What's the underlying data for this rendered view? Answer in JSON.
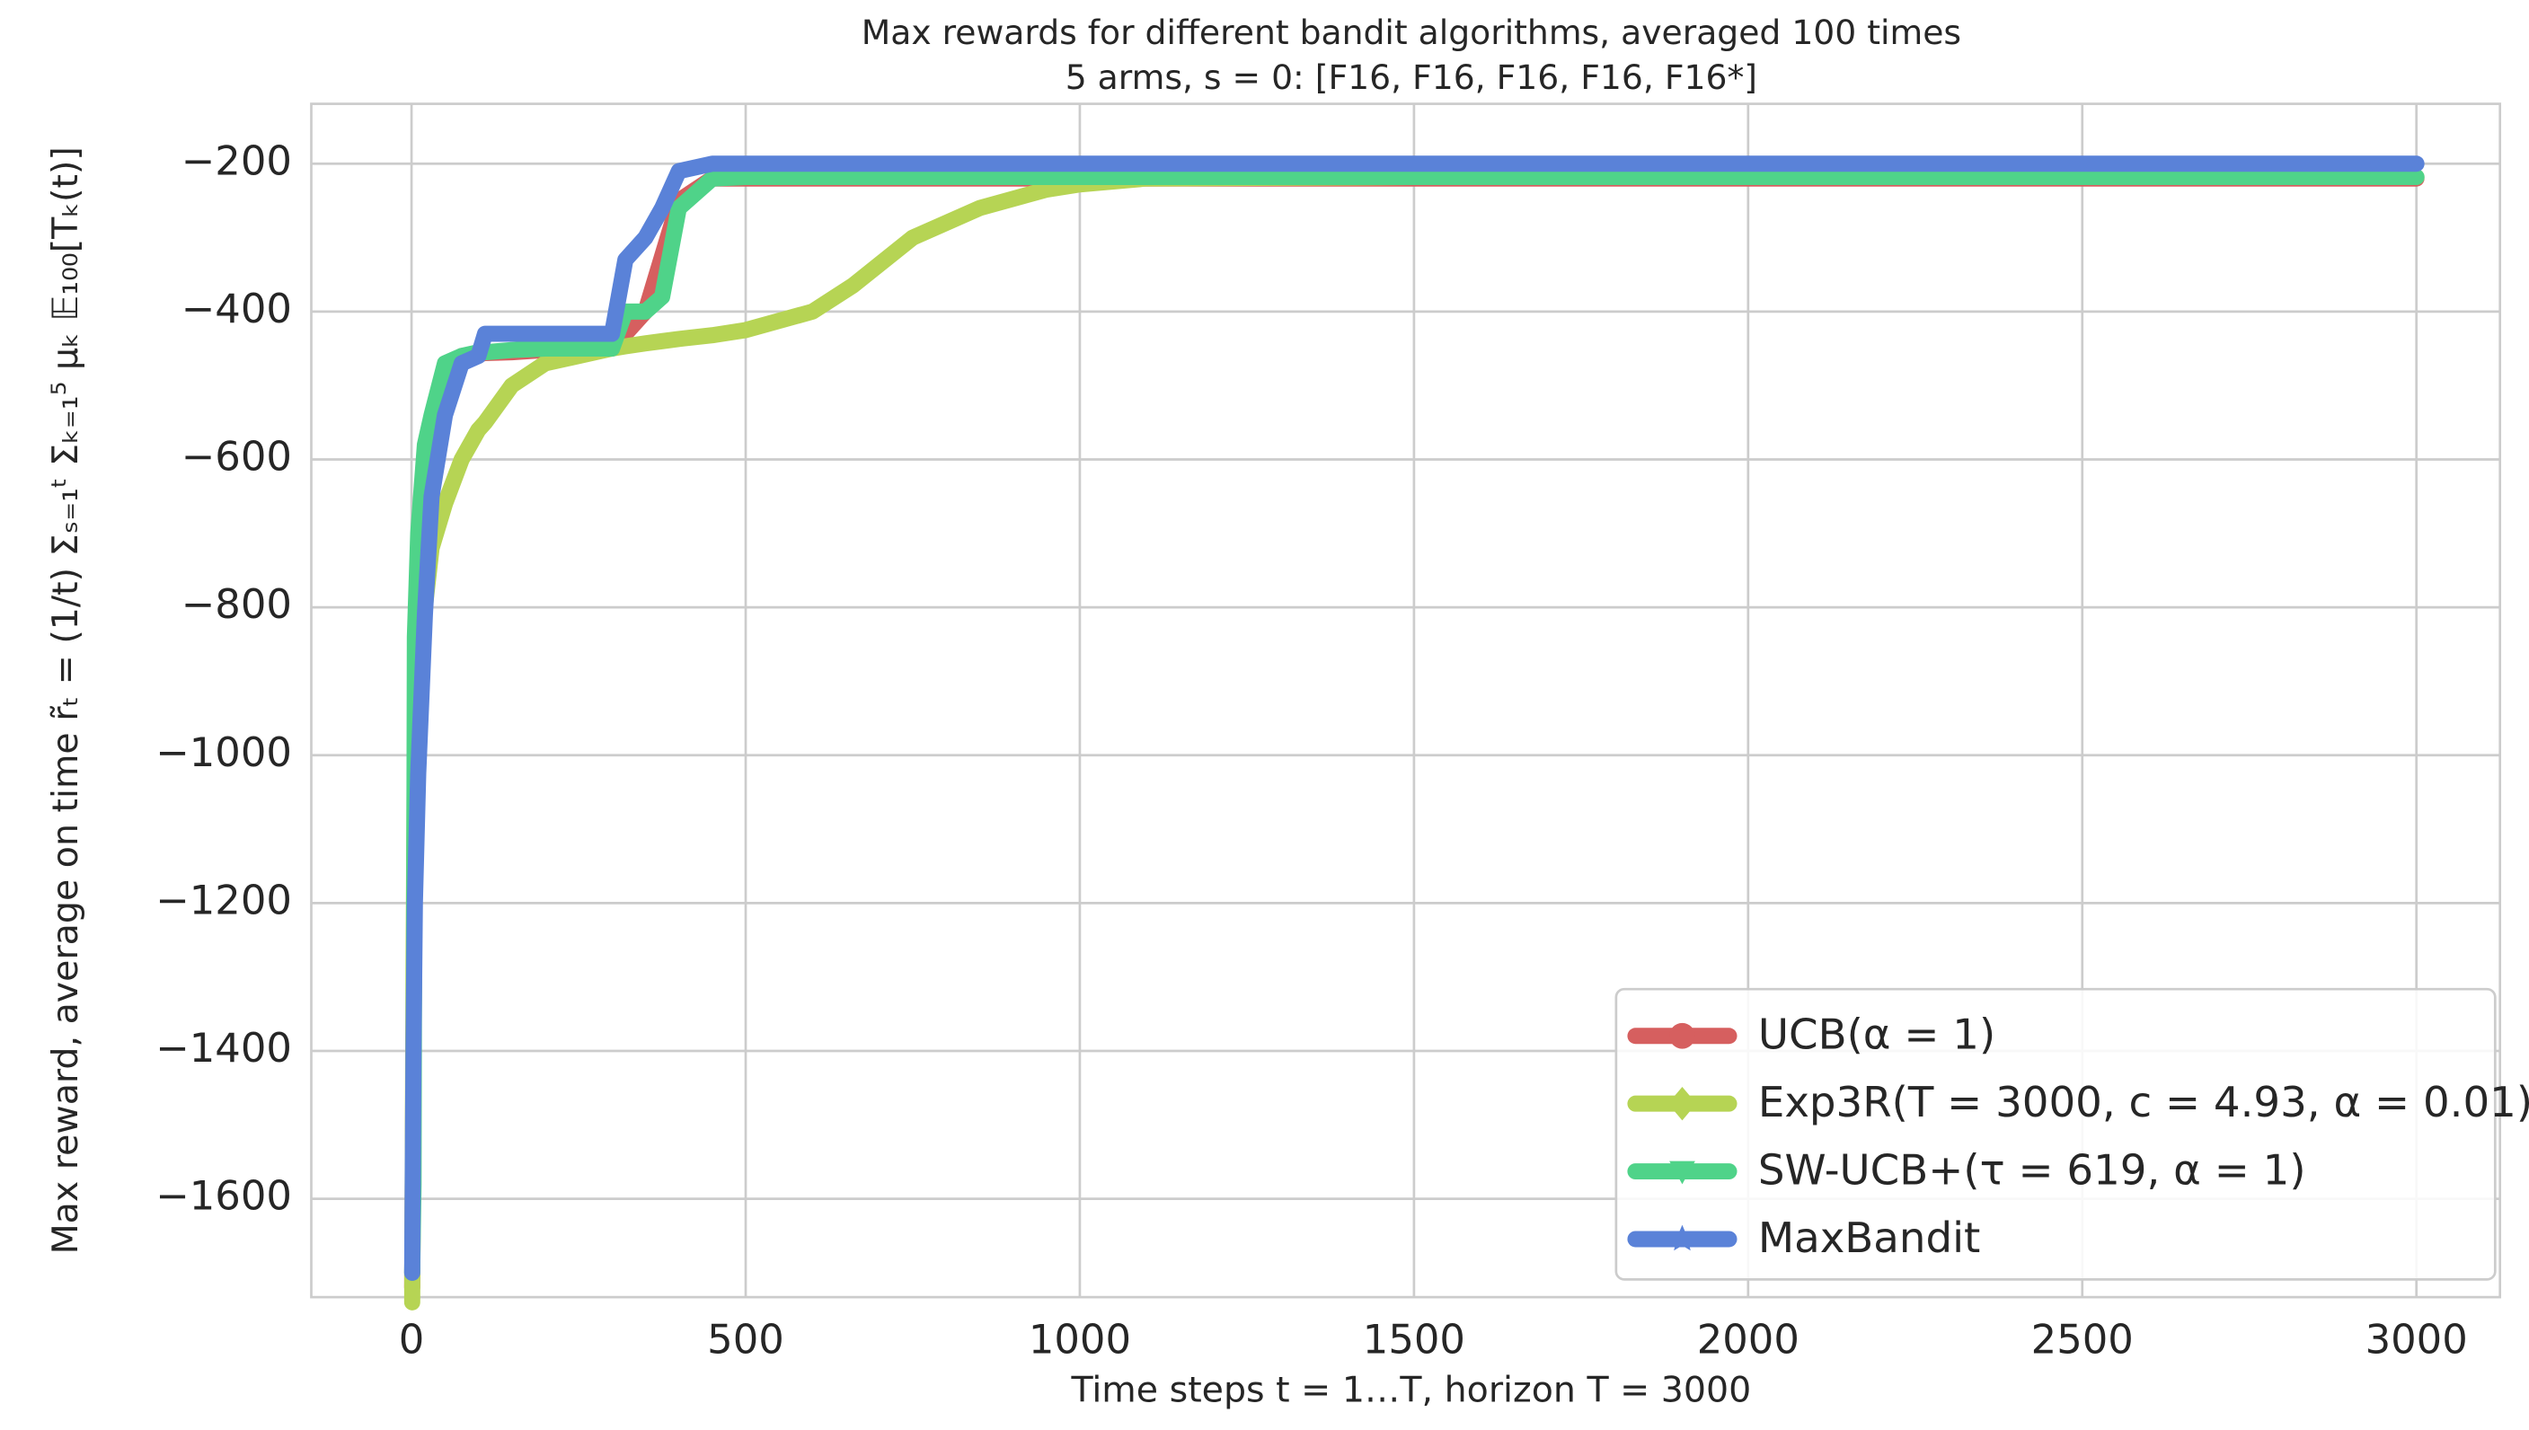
{
  "chart_data": {
    "type": "line",
    "title": "Max rewards for different bandit algorithms, averaged 100 times",
    "subtitle": "5 arms, s = 0: [F16, F16, F16, F16, F16*]",
    "x_label": "Time steps t = 1…T, horizon T = 3000",
    "y_label": "Max reward, average on time r̃ₜ = (1/t) Σₛ₌₁ᵗ Σₖ₌₁⁵ μₖ 𝔼₁₀₀[Tₖ(t)]",
    "x": [
      1,
      3,
      5,
      10,
      20,
      30,
      50,
      75,
      100,
      110,
      150,
      200,
      300,
      320,
      350,
      375,
      400,
      450,
      500,
      600,
      660,
      750,
      850,
      950,
      1000,
      1100,
      1500,
      2000,
      3000
    ],
    "series": [
      {
        "name": "UCB(α = 1)",
        "color": "#d65f5f",
        "marker": "circle",
        "values": [
          -1720,
          -1400,
          -1025,
          -850,
          -700,
          -600,
          -480,
          -460,
          -458,
          -456,
          -455,
          -452,
          -450,
          -430,
          -400,
          -325,
          -250,
          -220,
          -220,
          -220,
          -220,
          -220,
          -220,
          -220,
          -220,
          -220,
          -220,
          -220,
          -220
        ]
      },
      {
        "name": "Exp3R(T = 3000, c = 4.93, α = 0.01)",
        "color": "#b6d454",
        "marker": "diamond",
        "values": [
          -1740,
          -1290,
          -985,
          -900,
          -800,
          -720,
          -660,
          -600,
          -560,
          -550,
          -500,
          -470,
          -450,
          -447,
          -443,
          -440,
          -437,
          -432,
          -425,
          -400,
          -365,
          -300,
          -260,
          -235,
          -228,
          -220,
          -218,
          -218,
          -218
        ]
      },
      {
        "name": "SW-UCB+(τ = 619, α = 1)",
        "color": "#4fd389",
        "marker": "triangle",
        "values": [
          -1700,
          -1580,
          -840,
          -700,
          -580,
          -540,
          -470,
          -460,
          -455,
          -455,
          -452,
          -450,
          -450,
          -400,
          -400,
          -380,
          -260,
          -220,
          -218,
          -218,
          -218,
          -218,
          -218,
          -218,
          -218,
          -218,
          -218,
          -218,
          -218
        ]
      },
      {
        "name": "MaxBandit",
        "color": "#5a82d8",
        "marker": "star",
        "values": [
          -1700,
          -1390,
          -1200,
          -1025,
          -810,
          -650,
          -540,
          -470,
          -460,
          -430,
          -430,
          -430,
          -430,
          -330,
          -300,
          -260,
          -210,
          -200,
          -200,
          -200,
          -200,
          -200,
          -200,
          -200,
          -200,
          -200,
          -200,
          -200,
          -200
        ]
      }
    ],
    "xlim": [
      -150,
      3125
    ],
    "ylim": [
      -1733,
      -119
    ],
    "xticks": [
      0,
      500,
      1000,
      1500,
      2000,
      2500,
      3000
    ],
    "yticks": [
      {
        "value": -200,
        "label": "−200"
      },
      {
        "value": -400,
        "label": "−400"
      },
      {
        "value": -600,
        "label": "−600"
      },
      {
        "value": -800,
        "label": "−800"
      },
      {
        "value": -1000,
        "label": "−1000"
      },
      {
        "value": -1200,
        "label": "−1200"
      },
      {
        "value": -1400,
        "label": "−1400"
      },
      {
        "value": -1600,
        "label": "−1600"
      }
    ],
    "grid": true,
    "legend": "lower right"
  }
}
